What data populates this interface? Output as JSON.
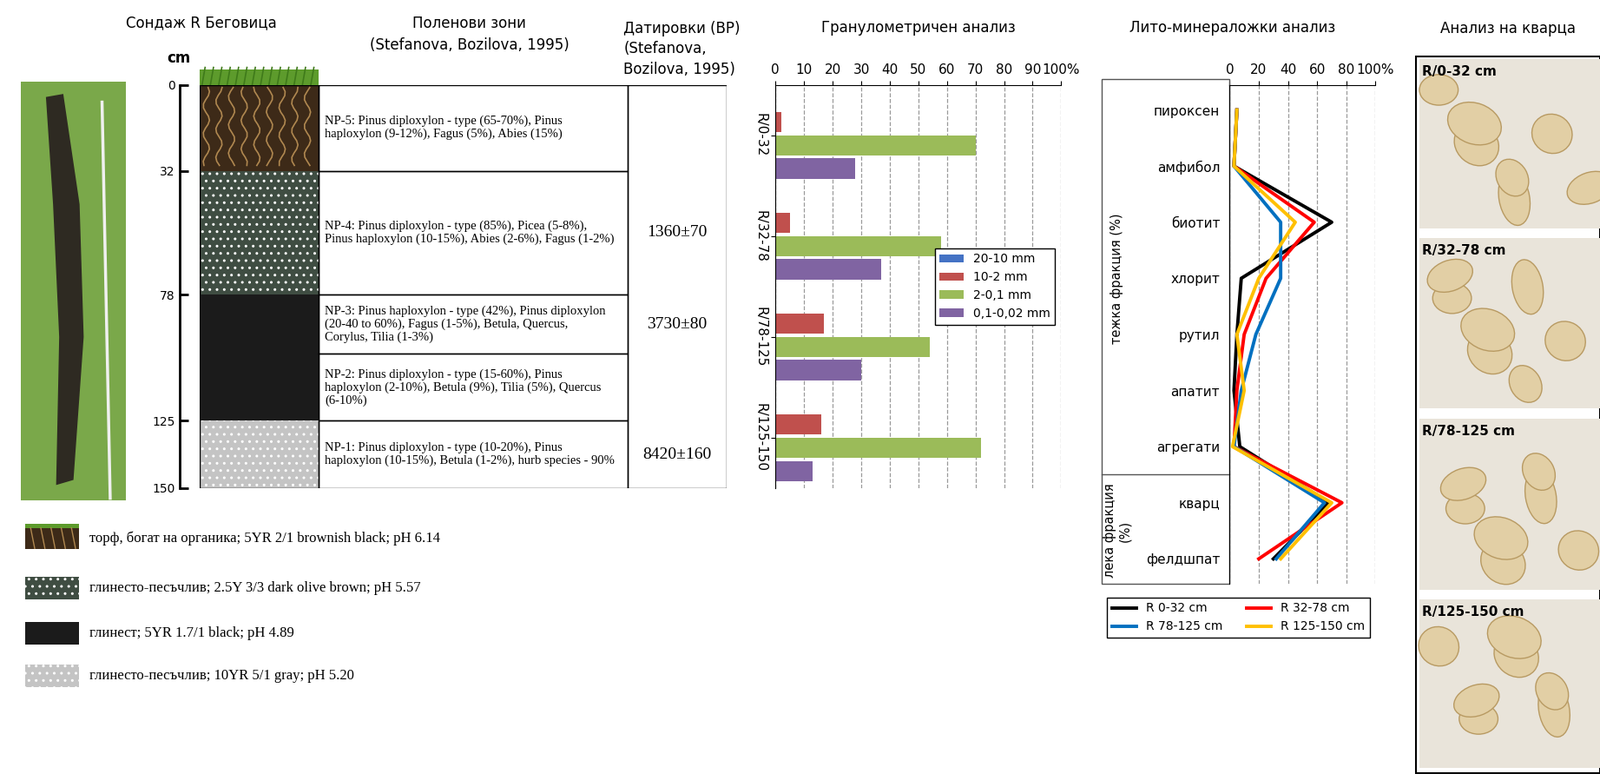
{
  "profile": {
    "title": "Сондаж R Беговица",
    "depth_axis": {
      "label": "cm",
      "ylim": [
        0,
        150
      ],
      "yticks": [
        0,
        32,
        78,
        125,
        150
      ]
    },
    "layers": [
      {
        "top": 0,
        "bottom": 32,
        "description": "торф, богат на органика; 5YR 2/1 brownish black; pH 6.14"
      },
      {
        "top": 32,
        "bottom": 78,
        "description": "глинесто-песъчлив; 2.5Y 3/3 dark olive brown; pH 5.57"
      },
      {
        "top": 78,
        "bottom": 125,
        "description": "глинест; 5YR 1.7/1 black; pH 4.89"
      },
      {
        "top": 125,
        "bottom": 150,
        "description": "глинесто-песъчлив; 10YR 5/1 gray; pH 5.20"
      }
    ]
  },
  "pollen_zones": {
    "title": "Поленови зони\n(Stefanova, Bozilova, 1995)",
    "zones": [
      {
        "top": 0,
        "bottom": 32,
        "text": "NP-5: Pinus diploxylon - type (65-70%), Pinus haploxylon (9-12%), Fagus (5%), Abies (15%)"
      },
      {
        "top": 32,
        "bottom": 78,
        "text": "NP-4: Pinus diploxylon - type (85%), Picea (5-8%), Pinus haploxylon (10-15%), Abies (2-6%), Fagus (1-2%)",
        "date": "1360±70"
      },
      {
        "top": 78,
        "bottom": 100,
        "text": "NP-3: Pinus haploxylon - type (42%), Pinus diploxylon (20-40 to 60%), Fagus (1-5%), Betula, Quercus, Corylus, Tilia (1-3%)",
        "date": "3730±80"
      },
      {
        "top": 100,
        "bottom": 125,
        "text": "NP-2: Pinus diploxylon - type (15-60%), Pinus haploxylon (2-10%), Betula (9%), Tilia (5%), Quercus (6-10%)"
      },
      {
        "top": 125,
        "bottom": 150,
        "text": "NP-1: Pinus diploxylon - type (10-20%), Pinus haploxylon (10-15%), Betula (1-2%), hurb species - 90%",
        "date": "8420±160"
      }
    ]
  },
  "dates_title": "Датировки (BP)\n(Stefanova,\nBozilova, 1995)",
  "chart_data": [
    {
      "type": "bar",
      "title": "Гранулометричен анализ",
      "orientation": "horizontal",
      "categories": [
        "R/0-32",
        "R/32-78",
        "R/78-125",
        "R/125-150"
      ],
      "series": [
        {
          "name": "20-10 mm",
          "color": "#4472c4",
          "values": [
            0,
            0,
            0,
            0
          ]
        },
        {
          "name": "10-2 mm",
          "color": "#c0504d",
          "values": [
            2,
            5,
            17,
            16
          ]
        },
        {
          "name": "2-0,1 mm",
          "color": "#9bbb59",
          "values": [
            70,
            58,
            54,
            72
          ]
        },
        {
          "name": "0,1-0,02 mm",
          "color": "#8064a2",
          "values": [
            28,
            37,
            30,
            13
          ]
        }
      ],
      "xlim": [
        0,
        100
      ],
      "xticks": [
        0,
        10,
        20,
        30,
        40,
        50,
        60,
        70,
        80,
        90,
        {
          "value": 100,
          "label": "100%"
        }
      ],
      "grid": true,
      "legend": "center right"
    },
    {
      "type": "line",
      "title": "Лито-минераложки анализ",
      "orientation": "horizontal",
      "categories": [
        "пироксен",
        "амфибол",
        "биотит",
        "хлорит",
        "рутил",
        "апатит",
        "агрегати",
        "кварц",
        "фелдшпат"
      ],
      "groups": [
        {
          "label": "тежка фракция (%)",
          "categories": [
            "пироксен",
            "амфибол",
            "биотит",
            "хлорит",
            "рутил",
            "апатит",
            "агрегати"
          ]
        },
        {
          "label": "лека фракция\n(%)",
          "categories": [
            "кварц",
            "фелдшпат"
          ]
        }
      ],
      "series": [
        {
          "name": "R 0-32 cm",
          "color": "#000000",
          "values": [
            5,
            3,
            70,
            8,
            5,
            3,
            7,
            68,
            30
          ]
        },
        {
          "name": "R 32-78 cm",
          "color": "#ff0000",
          "values": [
            5,
            3,
            58,
            25,
            10,
            5,
            3,
            77,
            20
          ]
        },
        {
          "name": "R 78-125 cm",
          "color": "#0070c0",
          "values": [
            5,
            3,
            35,
            35,
            18,
            8,
            3,
            65,
            32
          ]
        },
        {
          "name": "R 125-150 cm",
          "color": "#ffc000",
          "values": [
            5,
            3,
            45,
            20,
            5,
            10,
            2,
            70,
            35
          ]
        }
      ],
      "xlim": [
        0,
        100
      ],
      "xticks": [
        0,
        20,
        40,
        60,
        80,
        {
          "value": 100,
          "label": "100%"
        }
      ],
      "grid": true,
      "legend": "bottom"
    }
  ],
  "quartz": {
    "title": "Анализ на кварца",
    "panels": [
      "R/0-32 cm",
      "R/32-78 cm",
      "R/78-125 cm",
      "R/125-150 cm"
    ]
  }
}
